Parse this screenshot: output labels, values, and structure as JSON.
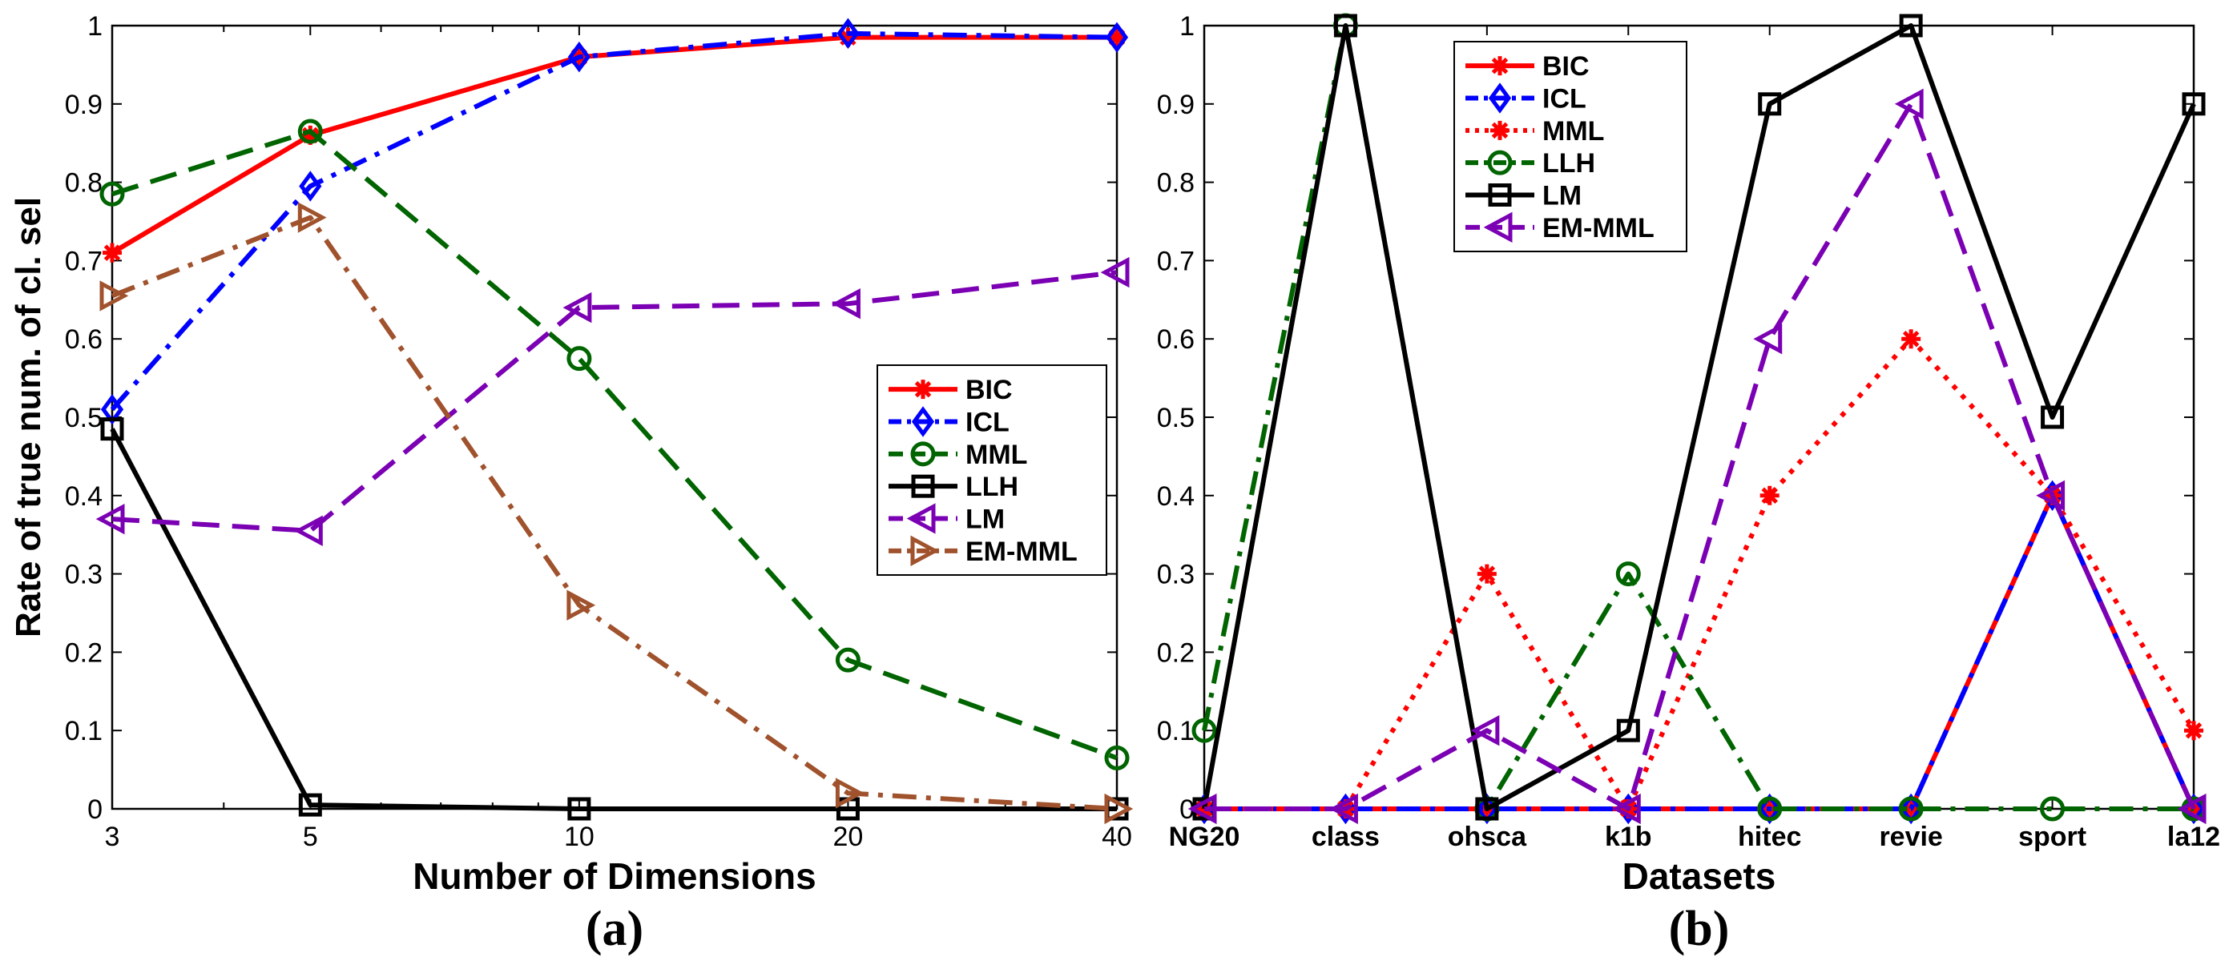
{
  "chart_data": [
    {
      "type": "line",
      "panel_label": "(a)",
      "xlabel": "Number of Dimensions",
      "ylabel": "Rate of true num. of cl. sel",
      "categories": [
        "3",
        "5",
        "10",
        "20",
        "40"
      ],
      "x_log": [
        3,
        5,
        10,
        20,
        40
      ],
      "ylim": [
        0,
        1
      ],
      "yticks": [
        "0",
        "0.1",
        "0.2",
        "0.3",
        "0.4",
        "0.5",
        "0.6",
        "0.7",
        "0.8",
        "0.9",
        "1"
      ],
      "legend_position": "center-right",
      "series": [
        {
          "name": "BIC",
          "color": "#ff0000",
          "dash": "solid",
          "marker": "star",
          "values": [
            0.71,
            0.86,
            0.96,
            0.985,
            0.985
          ]
        },
        {
          "name": "ICL",
          "color": "#0000ff",
          "dash": "dashdot",
          "marker": "diamond",
          "values": [
            0.51,
            0.795,
            0.96,
            0.99,
            0.985
          ]
        },
        {
          "name": "MML",
          "color": "#006400",
          "dash": "dashed",
          "marker": "circle",
          "values": [
            0.785,
            0.865,
            0.575,
            0.19,
            0.065
          ]
        },
        {
          "name": "LLH",
          "color": "#000000",
          "dash": "solid",
          "marker": "square",
          "values": [
            0.485,
            0.005,
            0.0,
            0.0,
            0.0
          ]
        },
        {
          "name": "LM",
          "color": "#7b00b4",
          "dash": "dashed",
          "marker": "triangle-left",
          "values": [
            0.37,
            0.355,
            0.64,
            0.645,
            0.685
          ]
        },
        {
          "name": "EM-MML",
          "color": "#a0522d",
          "dash": "dashdot",
          "marker": "triangle-right",
          "values": [
            0.655,
            0.755,
            0.26,
            0.02,
            0.0
          ]
        }
      ]
    },
    {
      "type": "line",
      "panel_label": "(b)",
      "xlabel": "Datasets",
      "ylabel": "",
      "categories": [
        "NG20",
        "class",
        "ohsca",
        "k1b",
        "hitec",
        "revie",
        "sport",
        "la12"
      ],
      "ylim": [
        0,
        1
      ],
      "yticks": [
        "0",
        "0.1",
        "0.2",
        "0.3",
        "0.4",
        "0.5",
        "0.6",
        "0.7",
        "0.8",
        "0.9",
        "1"
      ],
      "legend_position": "top-left",
      "series": [
        {
          "name": "BIC",
          "color": "#ff0000",
          "dash": "solid",
          "marker": "star",
          "values": [
            0,
            0,
            0,
            0,
            0,
            0,
            0.4,
            0
          ]
        },
        {
          "name": "ICL",
          "color": "#0000ff",
          "dash": "dashdot",
          "marker": "diamond",
          "values": [
            0,
            0,
            0,
            0,
            0,
            0,
            0.4,
            0
          ]
        },
        {
          "name": "MML",
          "color": "#ff0000",
          "dash": "dotted",
          "marker": "star",
          "values": [
            0,
            0,
            0.3,
            0,
            0.4,
            0.6,
            0.4,
            0.1
          ]
        },
        {
          "name": "LLH",
          "color": "#006400",
          "dash": "dashdot",
          "marker": "circle",
          "values": [
            0.1,
            1.0,
            0,
            0.3,
            0,
            0,
            0,
            0
          ]
        },
        {
          "name": "LM",
          "color": "#000000",
          "dash": "solid",
          "marker": "square",
          "values": [
            0,
            1.0,
            0,
            0.1,
            0.9,
            1.0,
            0.5,
            0.9
          ]
        },
        {
          "name": "EM-MML",
          "color": "#7b00b4",
          "dash": "dashed",
          "marker": "triangle-left",
          "values": [
            0,
            0,
            0.1,
            0,
            0.6,
            0.9,
            0.4,
            0
          ]
        }
      ]
    }
  ]
}
